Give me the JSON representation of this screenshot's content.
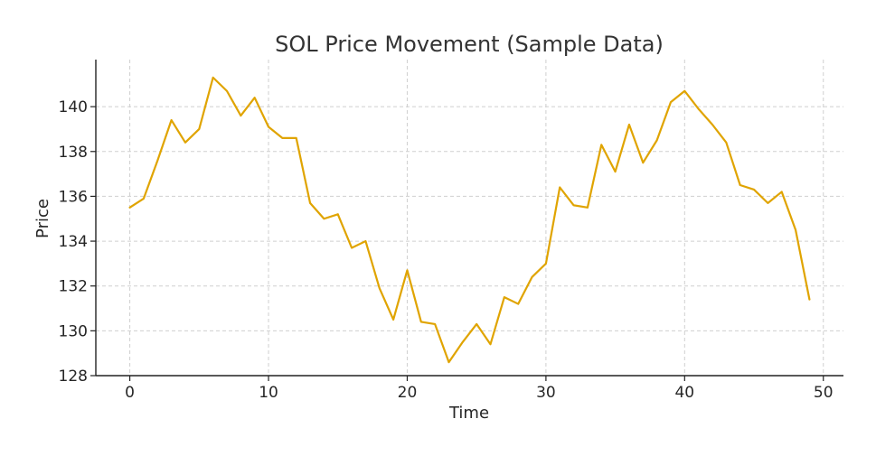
{
  "chart_data": {
    "type": "line",
    "title": "SOL Price Movement (Sample Data)",
    "xlabel": "Time",
    "ylabel": "Price",
    "xlim": [
      -2.45,
      51.45
    ],
    "ylim": [
      128,
      142.1
    ],
    "xticks": [
      0,
      10,
      20,
      30,
      40,
      50
    ],
    "yticks": [
      128,
      130,
      132,
      134,
      136,
      138,
      140
    ],
    "grid": true,
    "series": [
      {
        "name": "SOL Price",
        "color": "#e0a400",
        "x": [
          0,
          1,
          2,
          3,
          4,
          5,
          6,
          7,
          8,
          9,
          10,
          11,
          12,
          13,
          14,
          15,
          16,
          17,
          18,
          19,
          20,
          21,
          22,
          23,
          24,
          25,
          26,
          27,
          28,
          29,
          30,
          31,
          32,
          33,
          34,
          35,
          36,
          37,
          38,
          39,
          40,
          41,
          42,
          43,
          44,
          45,
          46,
          47,
          48,
          49
        ],
        "values": [
          135.5,
          135.9,
          137.6,
          139.4,
          138.4,
          139.0,
          141.3,
          140.7,
          139.6,
          140.4,
          139.1,
          138.6,
          138.6,
          135.7,
          135.0,
          135.2,
          133.7,
          134.0,
          131.9,
          130.5,
          132.7,
          130.4,
          130.3,
          128.6,
          129.5,
          130.3,
          129.4,
          131.5,
          131.2,
          132.4,
          133.0,
          136.4,
          135.6,
          135.5,
          138.3,
          137.1,
          139.2,
          137.5,
          138.5,
          140.2,
          140.7,
          139.9,
          139.2,
          138.4,
          136.5,
          136.3,
          135.7,
          136.2,
          134.5,
          131.4
        ]
      }
    ]
  }
}
